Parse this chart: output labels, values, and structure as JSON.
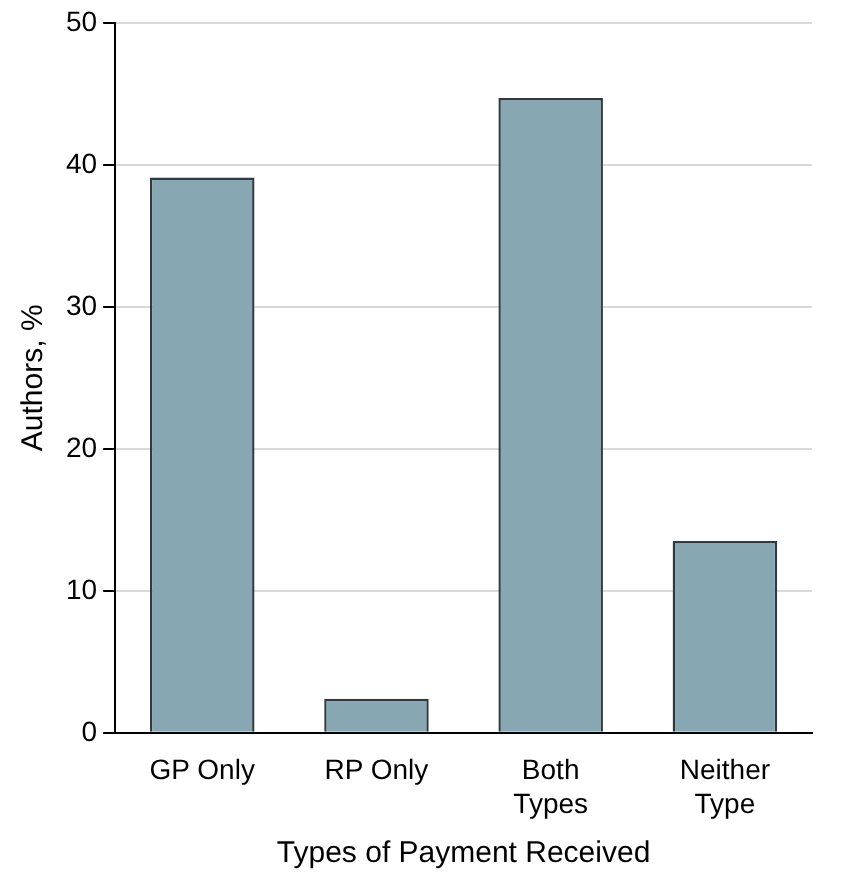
{
  "chart_data": {
    "type": "bar",
    "xlabel": "Types of Payment Received",
    "ylabel": "Authors, %",
    "categories": [
      "GP Only",
      "RP Only",
      "Both Types",
      "Neither Type"
    ],
    "values": [
      39.1,
      2.4,
      44.7,
      13.5
    ],
    "color": "#87a7b3",
    "ylim": [
      0,
      50
    ],
    "yticks": [
      0,
      10,
      20,
      30,
      40,
      50
    ],
    "grid": "y",
    "legend": false
  }
}
